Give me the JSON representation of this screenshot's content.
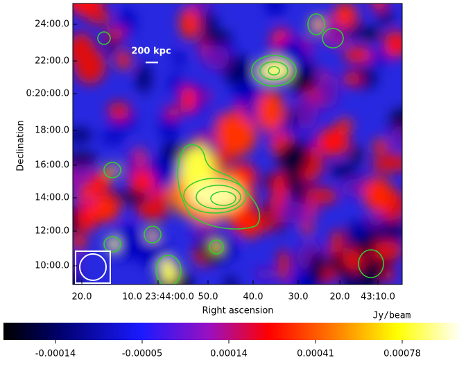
{
  "plot": {
    "x_axis_label": "Right ascension",
    "y_axis_label": "Declination",
    "x_tick_labels": [
      "20.0",
      "10.0 23:44:00.0",
      "50.0",
      "40.0",
      "30.0",
      "20.0",
      "43:10.0"
    ],
    "y_tick_labels": [
      "24:00.0",
      "22:00.0",
      "0:20:00.0",
      "18:00.0",
      "16:00.0",
      "14:00.0",
      "12:00.0",
      "10:00.0"
    ],
    "scale_bar_label": "200 kpc"
  },
  "colorbar": {
    "unit": "Jy/beam",
    "tick_labels": [
      "-0.00014",
      "-0.00005",
      "0.00014",
      "0.00041",
      "0.00078"
    ]
  }
}
